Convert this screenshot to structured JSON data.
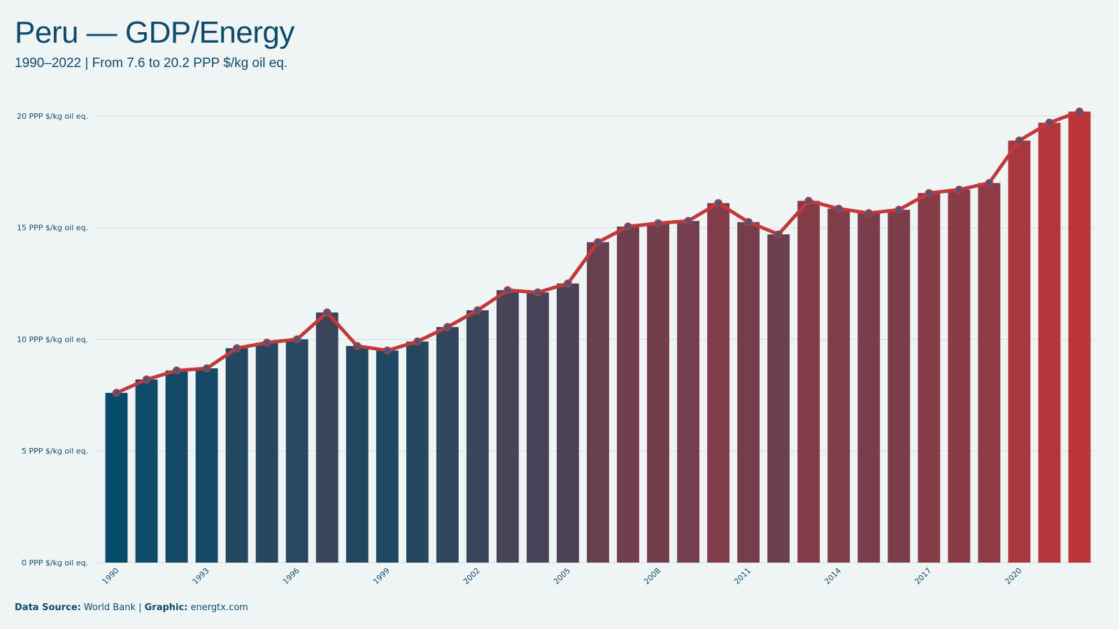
{
  "header": {
    "title": "Peru — GDP/Energy",
    "subtitle": "1990–2022 | From 7.6 to 20.2 PPP $/kg oil eq."
  },
  "footer": {
    "source_label": "Data Source:",
    "source_value": "World Bank",
    "separator": "|",
    "graphic_label": "Graphic:",
    "graphic_value": "energtx.com"
  },
  "colors": {
    "background": "#eff5f5",
    "bar_start": "#064b69",
    "bar_end": "#bb3539",
    "line": "#c1393c",
    "marker_fill": "#4a5878",
    "grid": "#d3dcdc",
    "text": "#0e4a6b"
  },
  "chart_data": {
    "type": "bar",
    "overlay": "line-with-markers",
    "categories": [
      1990,
      1991,
      1992,
      1993,
      1994,
      1995,
      1996,
      1997,
      1998,
      1999,
      2000,
      2001,
      2002,
      2003,
      2004,
      2005,
      2006,
      2007,
      2008,
      2009,
      2010,
      2011,
      2012,
      2013,
      2014,
      2015,
      2016,
      2017,
      2018,
      2019,
      2020,
      2021,
      2022
    ],
    "values": [
      7.6,
      8.2,
      8.6,
      8.7,
      9.6,
      9.85,
      10.0,
      11.2,
      9.7,
      9.5,
      9.9,
      10.55,
      11.3,
      12.2,
      12.1,
      12.5,
      14.35,
      15.05,
      15.2,
      15.3,
      16.1,
      15.25,
      14.7,
      16.2,
      15.85,
      15.65,
      15.8,
      16.55,
      16.7,
      17.0,
      18.9,
      19.7,
      20.2
    ],
    "x_tick_labels": [
      "1990",
      "1993",
      "1996",
      "1999",
      "2002",
      "2005",
      "2008",
      "2011",
      "2014",
      "2017",
      "2020"
    ],
    "y_ticks": [
      0,
      5,
      10,
      15,
      20
    ],
    "y_tick_suffix": " PPP $/kg oil eq.",
    "ylim": [
      0,
      20.5
    ],
    "grid": "horizontal",
    "legend": "none"
  }
}
